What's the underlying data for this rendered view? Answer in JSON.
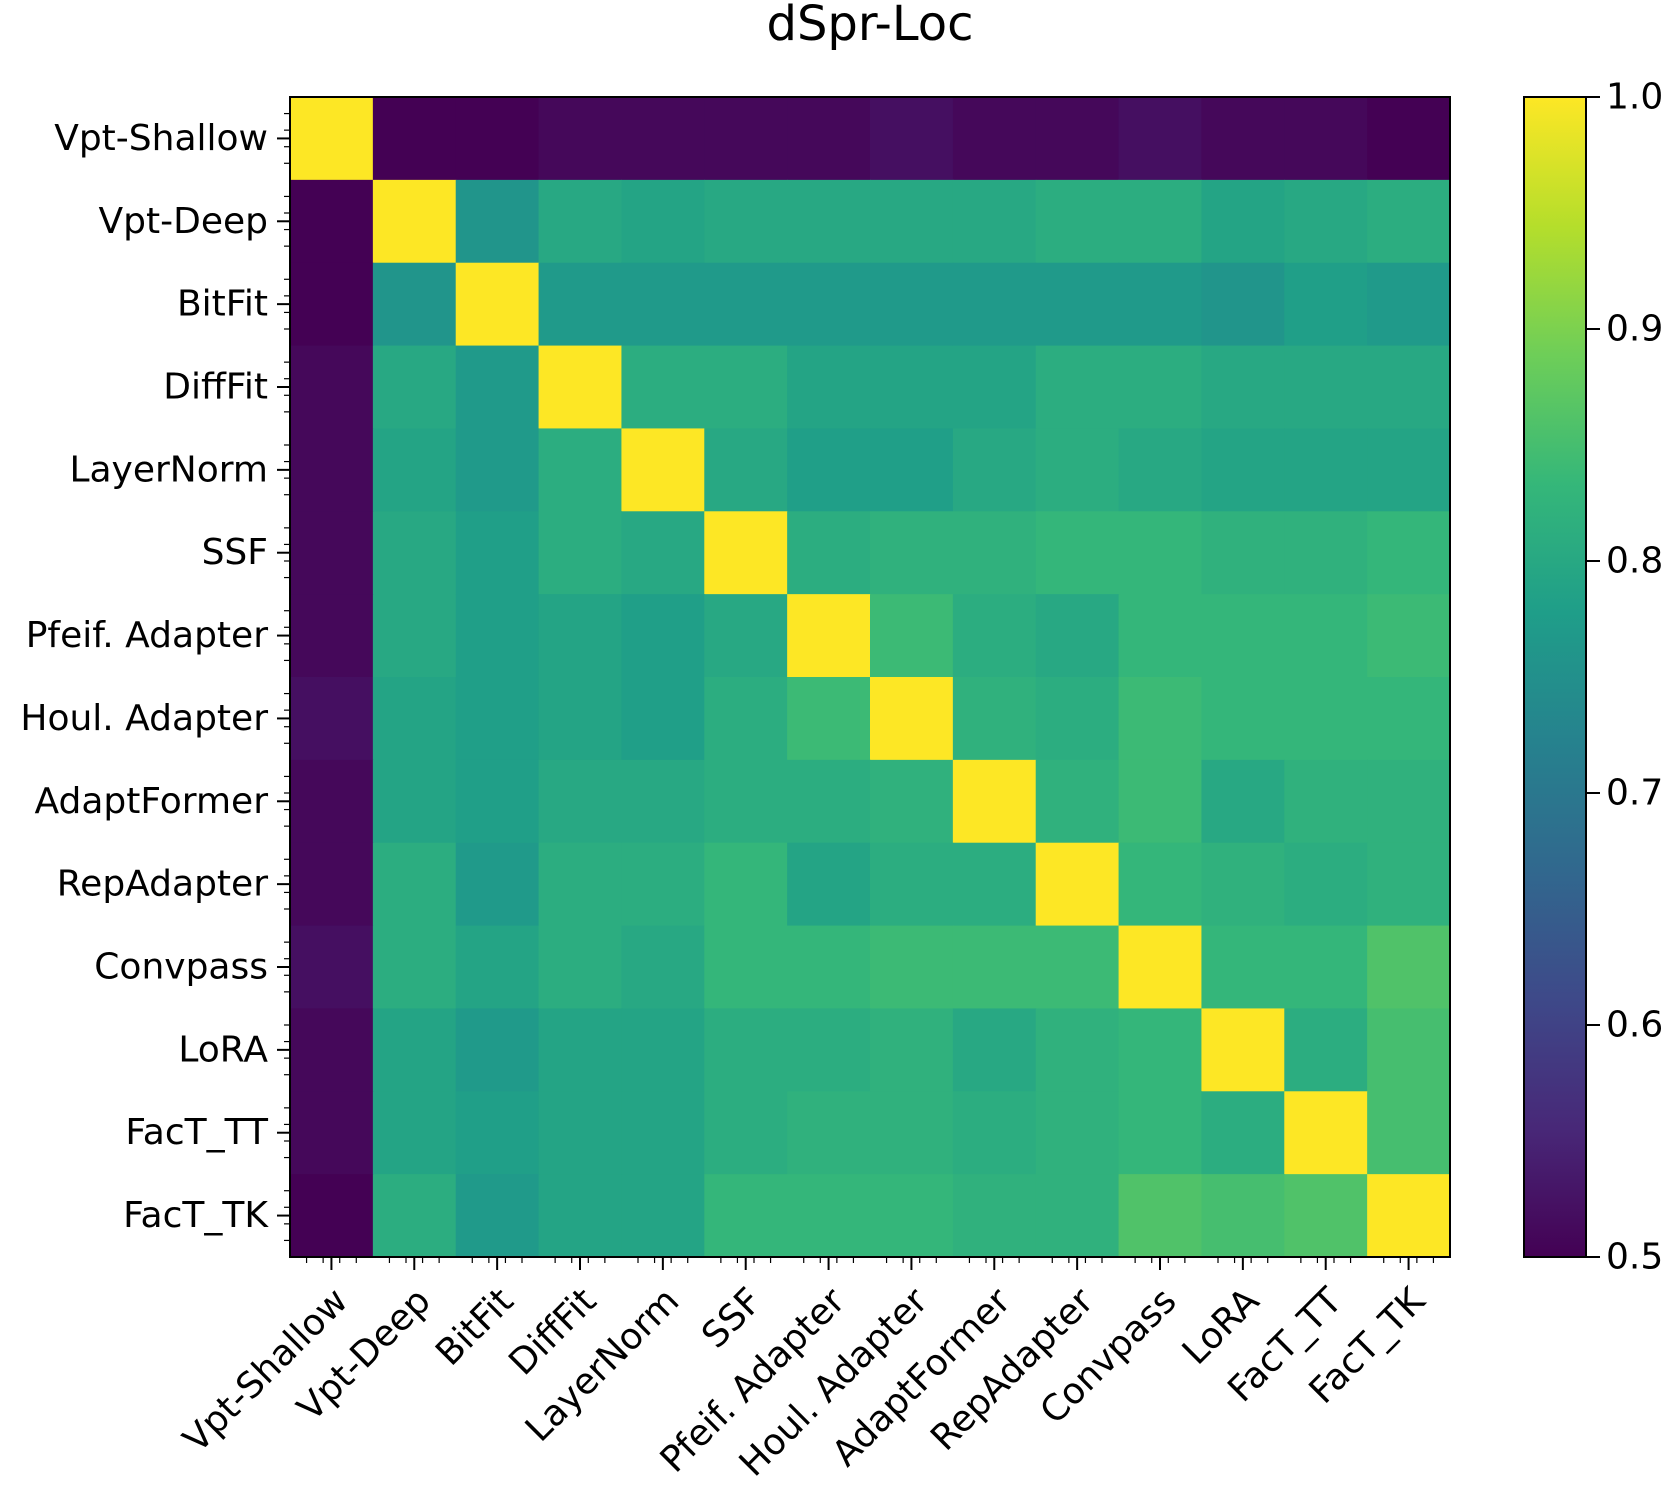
{
  "chart_data": {
    "type": "heatmap",
    "title": "dSpr-Loc",
    "xlabel": "",
    "ylabel": "",
    "categories": [
      "Vpt-Shallow",
      "Vpt-Deep",
      "BitFit",
      "DiffFit",
      "LayerNorm",
      "SSF",
      "Pfeif. Adapter",
      "Houl. Adapter",
      "AdaptFormer",
      "RepAdapter",
      "Convpass",
      "LoRA",
      "FacT_TT",
      "FacT_TK"
    ],
    "matrix": [
      [
        1.0,
        0.5,
        0.5,
        0.51,
        0.51,
        0.51,
        0.51,
        0.52,
        0.51,
        0.51,
        0.52,
        0.51,
        0.51,
        0.5
      ],
      [
        0.5,
        1.0,
        0.76,
        0.8,
        0.79,
        0.8,
        0.8,
        0.8,
        0.8,
        0.81,
        0.81,
        0.79,
        0.8,
        0.81
      ],
      [
        0.5,
        0.76,
        1.0,
        0.77,
        0.77,
        0.77,
        0.77,
        0.77,
        0.77,
        0.77,
        0.77,
        0.76,
        0.78,
        0.77
      ],
      [
        0.51,
        0.8,
        0.77,
        1.0,
        0.81,
        0.81,
        0.79,
        0.79,
        0.79,
        0.81,
        0.81,
        0.8,
        0.8,
        0.8
      ],
      [
        0.51,
        0.79,
        0.77,
        0.81,
        1.0,
        0.8,
        0.78,
        0.78,
        0.8,
        0.81,
        0.8,
        0.79,
        0.79,
        0.79
      ],
      [
        0.51,
        0.8,
        0.78,
        0.81,
        0.8,
        1.0,
        0.81,
        0.82,
        0.82,
        0.83,
        0.83,
        0.82,
        0.82,
        0.83
      ],
      [
        0.51,
        0.8,
        0.78,
        0.79,
        0.78,
        0.8,
        1.0,
        0.84,
        0.81,
        0.8,
        0.83,
        0.83,
        0.83,
        0.84
      ],
      [
        0.52,
        0.79,
        0.78,
        0.79,
        0.78,
        0.81,
        0.84,
        1.0,
        0.82,
        0.81,
        0.84,
        0.83,
        0.83,
        0.83
      ],
      [
        0.51,
        0.79,
        0.78,
        0.8,
        0.8,
        0.81,
        0.81,
        0.82,
        1.0,
        0.82,
        0.84,
        0.8,
        0.82,
        0.82
      ],
      [
        0.51,
        0.81,
        0.77,
        0.81,
        0.81,
        0.83,
        0.79,
        0.81,
        0.81,
        1.0,
        0.83,
        0.82,
        0.81,
        0.82
      ],
      [
        0.52,
        0.81,
        0.79,
        0.81,
        0.8,
        0.83,
        0.83,
        0.84,
        0.84,
        0.84,
        1.0,
        0.83,
        0.83,
        0.86
      ],
      [
        0.51,
        0.79,
        0.77,
        0.79,
        0.79,
        0.81,
        0.81,
        0.82,
        0.8,
        0.82,
        0.83,
        1.0,
        0.81,
        0.85
      ],
      [
        0.51,
        0.79,
        0.78,
        0.79,
        0.79,
        0.81,
        0.82,
        0.82,
        0.81,
        0.82,
        0.83,
        0.81,
        1.0,
        0.85
      ],
      [
        0.5,
        0.81,
        0.77,
        0.79,
        0.79,
        0.83,
        0.83,
        0.83,
        0.82,
        0.82,
        0.86,
        0.85,
        0.86,
        1.0
      ]
    ],
    "colorbar": {
      "min": 0.5,
      "max": 1.0,
      "ticks": [
        "0.5",
        "0.6",
        "0.7",
        "0.8",
        "0.9",
        "1.0"
      ],
      "colormap": "viridis",
      "colormap_stops": [
        "#440154",
        "#482878",
        "#3e4989",
        "#31688e",
        "#26828e",
        "#1f9e89",
        "#35b779",
        "#6ece58",
        "#b5de2b",
        "#fde725"
      ]
    },
    "grid": false,
    "legend": "colorbar-right"
  }
}
